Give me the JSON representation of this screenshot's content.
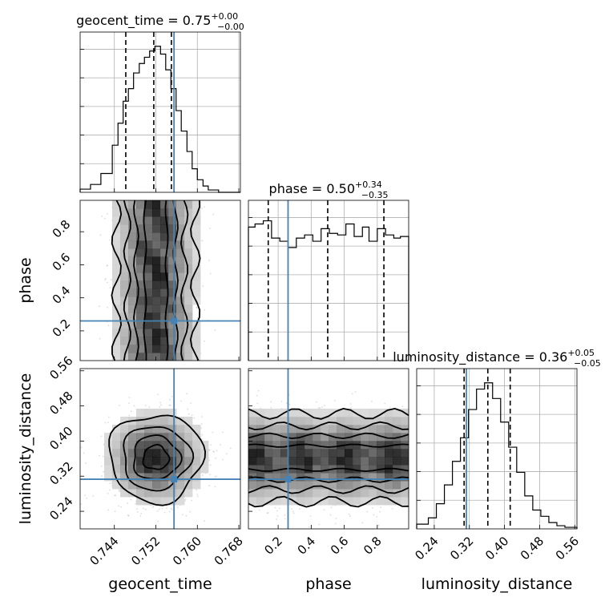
{
  "chart_data": {
    "type": "corner",
    "parameters": [
      "geocent_time",
      "phase",
      "luminosity_distance"
    ],
    "axis_labels": {
      "geocent_time": "geocent_time",
      "phase": "phase",
      "luminosity_distance": "luminosity_distance"
    },
    "titles": {
      "geocent_time": {
        "name": "geocent_time",
        "median": "0.75",
        "plus": "+0.00",
        "minus": "−0.00"
      },
      "phase": {
        "name": "phase",
        "median": "0.50",
        "plus": "+0.34",
        "minus": "−0.35"
      },
      "luminosity_distance": {
        "name": "luminosity_distance",
        "median": "0.36",
        "plus": "+0.05",
        "minus": "−0.05"
      }
    },
    "ranges": {
      "geocent_time": [
        0.7374,
        0.7683
      ],
      "phase": [
        0.02,
        0.99
      ],
      "luminosity_distance": [
        0.2,
        0.565
      ]
    },
    "ticks": {
      "geocent_time": [
        "0.744",
        "0.752",
        "0.760",
        "0.768"
      ],
      "phase": [
        "0.2",
        "0.4",
        "0.6",
        "0.8"
      ],
      "luminosity_distance": [
        "0.24",
        "0.32",
        "0.40",
        "0.48",
        "0.56"
      ]
    },
    "truths": {
      "geocent_time": 0.7555,
      "phase": 0.26,
      "luminosity_distance": 0.313
    },
    "quantiles": {
      "geocent_time": [
        0.7462,
        0.7516,
        0.755
      ],
      "phase": [
        0.14,
        0.5,
        0.84
      ],
      "luminosity_distance": [
        0.308,
        0.362,
        0.413
      ]
    },
    "marginals": {
      "geocent_time": {
        "edges": [
          0.7374,
          0.7394,
          0.7414,
          0.7436,
          0.7447,
          0.7457,
          0.7467,
          0.7477,
          0.7488,
          0.7498,
          0.7508,
          0.7518,
          0.7529,
          0.7539,
          0.7549,
          0.7559,
          0.7569,
          0.758,
          0.759,
          0.76,
          0.7611,
          0.7621,
          0.7641,
          0.7683
        ],
        "counts": [
          0.02,
          0.05,
          0.12,
          0.3,
          0.44,
          0.58,
          0.66,
          0.76,
          0.82,
          0.86,
          0.9,
          0.93,
          0.88,
          0.78,
          0.66,
          0.52,
          0.39,
          0.26,
          0.15,
          0.08,
          0.04,
          0.015,
          0.0
        ]
      },
      "phase": {
        "edges": [
          0.02,
          0.06,
          0.11,
          0.16,
          0.21,
          0.26,
          0.31,
          0.36,
          0.41,
          0.46,
          0.51,
          0.56,
          0.61,
          0.66,
          0.71,
          0.75,
          0.8,
          0.85,
          0.9,
          0.94,
          0.99
        ],
        "counts": [
          0.85,
          0.87,
          0.89,
          0.78,
          0.76,
          0.72,
          0.78,
          0.8,
          0.76,
          0.84,
          0.81,
          0.8,
          0.87,
          0.79,
          0.85,
          0.76,
          0.84,
          0.8,
          0.78,
          0.79
        ]
      },
      "luminosity_distance": {
        "edges": [
          0.2,
          0.2265,
          0.2448,
          0.2631,
          0.2814,
          0.2997,
          0.318,
          0.3363,
          0.3546,
          0.3729,
          0.3912,
          0.4095,
          0.4278,
          0.4461,
          0.4644,
          0.4827,
          0.501,
          0.5193,
          0.5376,
          0.565
        ],
        "counts": [
          0.03,
          0.07,
          0.16,
          0.28,
          0.43,
          0.58,
          0.76,
          0.89,
          0.93,
          0.83,
          0.68,
          0.52,
          0.36,
          0.21,
          0.12,
          0.08,
          0.04,
          0.02,
          0.01
        ]
      }
    },
    "joint_2d": {
      "phase_vs_geocent_time": {
        "center_x": 0.752,
        "sigma_x": 0.0038,
        "y_min": 0.02,
        "y_max": 0.99
      },
      "luminosity_distance_vs_geocent_time": {
        "center_x": 0.752,
        "sigma_x": 0.0045,
        "center_y": 0.362,
        "sigma_y": 0.05
      },
      "luminosity_distance_vs_phase": {
        "center_y": 0.362,
        "sigma_y": 0.05,
        "x_min": 0.02,
        "x_max": 0.99
      }
    },
    "colors": {
      "truth": "#4682b4",
      "lines": "#000000",
      "grid": "#b0b0b0",
      "points": "#9a9a9a"
    }
  }
}
